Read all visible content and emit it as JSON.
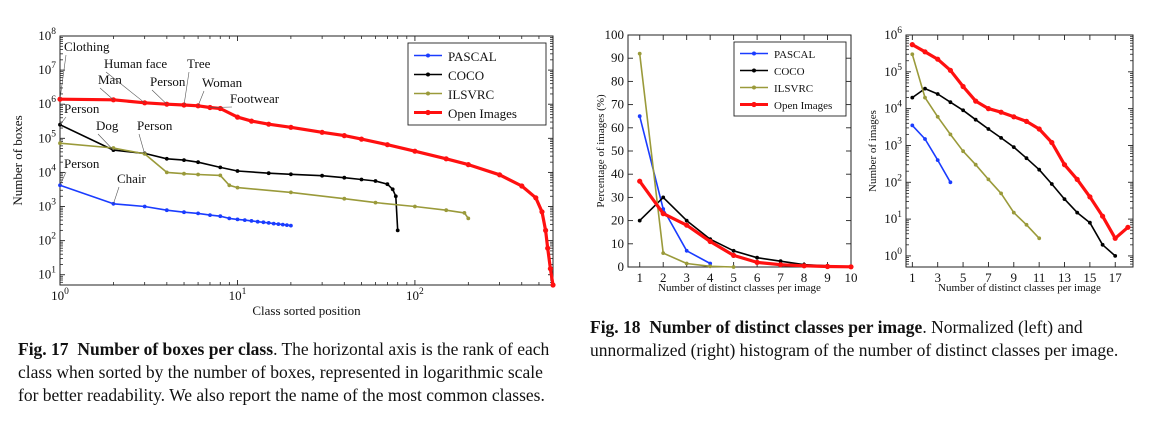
{
  "colors": {
    "PASCAL": "#1a3cff",
    "COCO": "#000000",
    "ILSVRC": "#9a9a3a",
    "Open Images": "#ff1010"
  },
  "captions": {
    "fig17": {
      "label": "Fig. 17",
      "title": "Number of boxes per class",
      "text": ". The horizontal axis is the rank of each class when sorted by the number of boxes, represented in logarithmic scale for better readability. We also report the name of the most common classes."
    },
    "fig18": {
      "label": "Fig. 18",
      "title": "Number of distinct classes per image",
      "text": ". Normalized (left) and unnormalized (right) histogram of the number of distinct classes per image."
    }
  },
  "chart_data": [
    {
      "id": "fig17",
      "type": "line",
      "xscale": "log",
      "yscale": "log",
      "xlim": [
        1,
        600
      ],
      "ylim": [
        5,
        100000000
      ],
      "xlabel": "Class sorted position",
      "ylabel": "Number of boxes",
      "xticks": [
        1,
        10,
        100
      ],
      "xtick_labels": [
        "10^0",
        "10^1",
        "10^2"
      ],
      "yticks": [
        10,
        100,
        1000,
        10000,
        100000,
        1000000,
        10000000,
        100000000
      ],
      "ytick_labels": [
        "10^1",
        "10^2",
        "10^3",
        "10^4",
        "10^5",
        "10^6",
        "10^7",
        "10^8"
      ],
      "legend": "top-right",
      "series": [
        {
          "name": "PASCAL",
          "x": [
            1,
            2,
            3,
            4,
            5,
            6,
            7,
            8,
            9,
            10,
            11,
            12,
            13,
            14,
            15,
            16,
            17,
            18,
            19,
            20
          ],
          "y": [
            4200,
            1200,
            1000,
            780,
            680,
            630,
            560,
            520,
            450,
            420,
            400,
            380,
            360,
            345,
            330,
            315,
            305,
            295,
            285,
            275
          ]
        },
        {
          "name": "COCO",
          "x": [
            1,
            2,
            3,
            4,
            5,
            6,
            8,
            10,
            15,
            20,
            30,
            40,
            50,
            60,
            70,
            75,
            78,
            80
          ],
          "y": [
            250000,
            45000,
            36000,
            25000,
            23000,
            20000,
            14000,
            11000,
            9500,
            8800,
            8000,
            7000,
            6200,
            5600,
            4500,
            3200,
            2000,
            200
          ]
        },
        {
          "name": "ILSVRC",
          "x": [
            1,
            2,
            3,
            4,
            5,
            6,
            8,
            9,
            10,
            20,
            40,
            60,
            100,
            150,
            190,
            200
          ],
          "y": [
            72000,
            52000,
            35000,
            10000,
            9200,
            8700,
            8200,
            4200,
            3600,
            2600,
            1700,
            1300,
            1000,
            780,
            650,
            450
          ]
        },
        {
          "name": "Open Images",
          "x": [
            1,
            2,
            3,
            4,
            5,
            6,
            7,
            8,
            10,
            12,
            15,
            20,
            30,
            40,
            50,
            70,
            100,
            150,
            200,
            300,
            400,
            480,
            520,
            545,
            560,
            580,
            600
          ],
          "y": [
            1400000,
            1350000,
            1100000,
            1000000,
            950000,
            900000,
            800000,
            750000,
            420000,
            320000,
            260000,
            210000,
            150000,
            120000,
            95000,
            65000,
            42000,
            25000,
            17000,
            8500,
            4000,
            1800,
            700,
            200,
            60,
            15,
            5
          ]
        }
      ],
      "annotations": [
        "Clothing",
        "Man",
        "Human face",
        "Person",
        "Tree",
        "Woman",
        "Footwear",
        "Person",
        "Dog",
        "Person",
        "Person",
        "Chair"
      ]
    },
    {
      "id": "fig18-left",
      "type": "line",
      "xlim": [
        0.5,
        10
      ],
      "ylim": [
        0,
        100
      ],
      "xlabel": "Number of distinct classes per image",
      "ylabel": "Percentage of images (%)",
      "xticks": [
        1,
        2,
        3,
        4,
        5,
        6,
        7,
        8,
        9,
        10
      ],
      "yticks": [
        0,
        10,
        20,
        30,
        40,
        50,
        60,
        70,
        80,
        90,
        100
      ],
      "legend": "top-right",
      "series": [
        {
          "name": "PASCAL",
          "x": [
            1,
            2,
            3,
            4
          ],
          "y": [
            65,
            25,
            7,
            1.5
          ]
        },
        {
          "name": "COCO",
          "x": [
            1,
            2,
            3,
            4,
            5,
            6,
            7,
            8,
            9,
            10
          ],
          "y": [
            20,
            30,
            20,
            12,
            7,
            4,
            2.5,
            1,
            0.5,
            0
          ]
        },
        {
          "name": "ILSVRC",
          "x": [
            1,
            2,
            3,
            4,
            5
          ],
          "y": [
            92,
            6,
            1.5,
            0.3,
            0
          ]
        },
        {
          "name": "Open Images",
          "x": [
            1,
            2,
            3,
            4,
            5,
            6,
            7,
            8,
            9,
            10
          ],
          "y": [
            37,
            23,
            18,
            11,
            5,
            2,
            1,
            0.5,
            0.2,
            0.1
          ]
        }
      ]
    },
    {
      "id": "fig18-right",
      "type": "line",
      "yscale": "log",
      "xlim": [
        0.5,
        18.4
      ],
      "ylim": [
        0.5,
        1000000
      ],
      "xlabel": "Number of distinct classes per image",
      "ylabel": "Number of images",
      "xticks": [
        1,
        3,
        5,
        7,
        9,
        11,
        13,
        15,
        17
      ],
      "yticks": [
        1,
        10,
        100,
        1000,
        10000,
        100000,
        1000000
      ],
      "ytick_labels": [
        "10^0",
        "10^1",
        "10^2",
        "10^3",
        "10^4",
        "10^5",
        "10^6"
      ],
      "series": [
        {
          "name": "PASCAL",
          "x": [
            1,
            2,
            3,
            4
          ],
          "y": [
            3500,
            1500,
            400,
            100
          ]
        },
        {
          "name": "COCO",
          "x": [
            1,
            2,
            3,
            4,
            5,
            6,
            7,
            8,
            9,
            10,
            11,
            12,
            13,
            14,
            15,
            16,
            17
          ],
          "y": [
            20000,
            35000,
            25000,
            15000,
            9000,
            5000,
            2800,
            1600,
            900,
            450,
            220,
            90,
            35,
            15,
            8,
            2,
            1
          ]
        },
        {
          "name": "ILSVRC",
          "x": [
            1,
            2,
            3,
            4,
            5,
            6,
            7,
            8,
            9,
            10,
            11
          ],
          "y": [
            300000,
            20000,
            6000,
            2000,
            700,
            300,
            120,
            50,
            15,
            7,
            3
          ]
        },
        {
          "name": "Open Images",
          "x": [
            1,
            2,
            3,
            4,
            5,
            6,
            7,
            8,
            9,
            10,
            11,
            12,
            13,
            14,
            15,
            16,
            17,
            18
          ],
          "y": [
            550000,
            350000,
            220000,
            110000,
            40000,
            16000,
            10000,
            8000,
            6000,
            4500,
            2800,
            1200,
            300,
            120,
            40,
            12,
            3,
            6
          ]
        }
      ]
    }
  ]
}
